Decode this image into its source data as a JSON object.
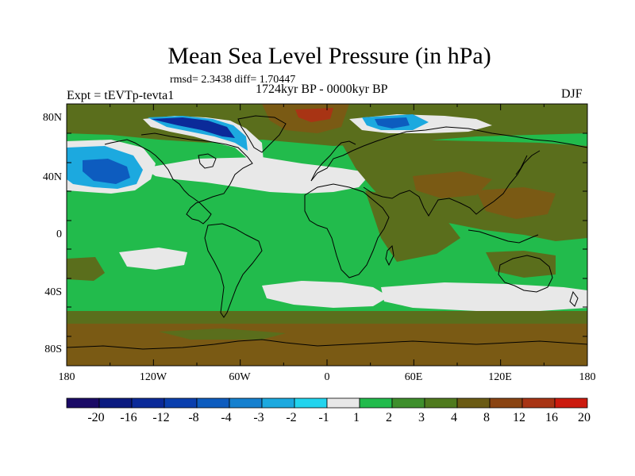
{
  "title": "Mean Sea Level Pressure (in hPa)",
  "stats": "rmsd= 2.3438 diff= 1.70447",
  "period": "1724kyr BP - 0000kyr BP",
  "experiment": "Expt = tEVTp-tevta1",
  "season": "DJF",
  "axes": {
    "lat_labels": [
      "80N",
      "40N",
      "0",
      "40S",
      "80S"
    ],
    "lon_labels": [
      "180",
      "120W",
      "60W",
      "0",
      "60E",
      "120E",
      "180"
    ]
  },
  "colorbar": {
    "labels": [
      "-20",
      "-16",
      "-12",
      "-8",
      "-4",
      "-3",
      "-2",
      "-1",
      "1",
      "2",
      "3",
      "4",
      "8",
      "12",
      "16",
      "20"
    ],
    "colors": [
      "#1a0a66",
      "#0b1a80",
      "#0b2a99",
      "#0a3fae",
      "#0d5cbf",
      "#1580cf",
      "#1ca9df",
      "#22d4ee",
      "#e8e8e8",
      "#22bb4c",
      "#3e8f2c",
      "#4f7a1e",
      "#6b5b14",
      "#8a4412",
      "#a83414",
      "#cc1a0e"
    ]
  },
  "map_colors": {
    "green": "#22bb4c",
    "olive": "#5a6e1c",
    "brown": "#7a5a14",
    "white": "#e8e8e8",
    "lightblue": "#1ca9df",
    "blue": "#0d5cbf",
    "darkblue": "#0b2a99",
    "red": "#a83414"
  }
}
